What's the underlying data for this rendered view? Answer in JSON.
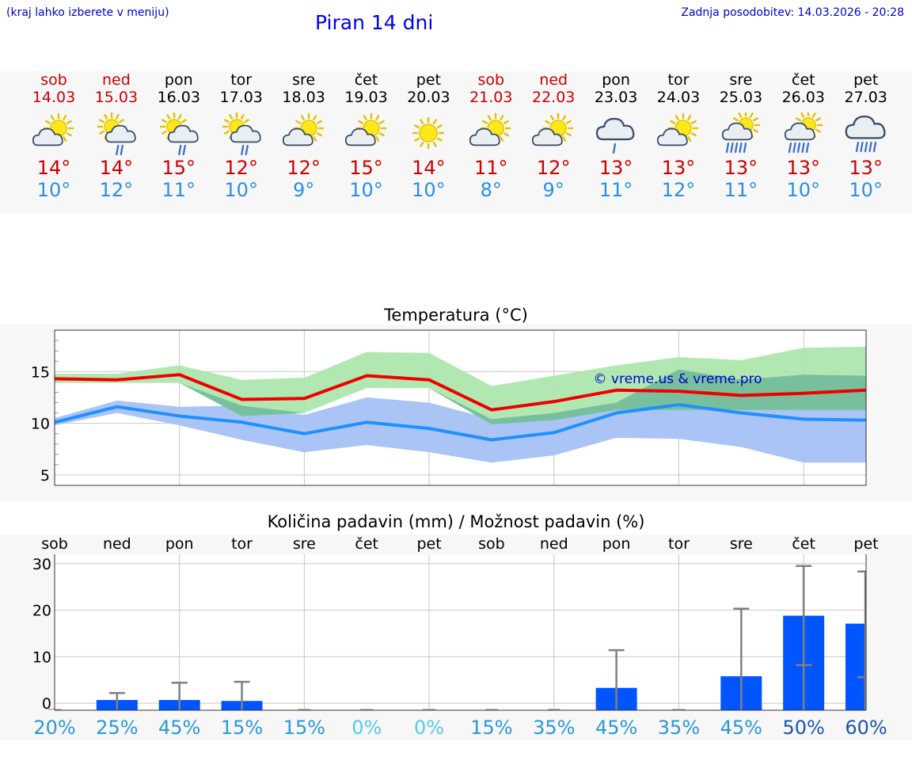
{
  "header": {
    "hint": "(kraj lahko izberete v meniju)",
    "title": "Piran 14 dni",
    "updated": "Zadnja posodobitev: 14.03.2026 - 20:28"
  },
  "days": [
    {
      "name": "sob",
      "date": "14.03",
      "weekend": true,
      "icon": "partly-sunny-icon",
      "max": "14°",
      "min": "10°"
    },
    {
      "name": "ned",
      "date": "15.03",
      "weekend": true,
      "icon": "sun-cloud-rain-icon",
      "max": "14°",
      "min": "12°"
    },
    {
      "name": "pon",
      "date": "16.03",
      "weekend": false,
      "icon": "sun-cloud-rain-icon",
      "max": "15°",
      "min": "11°"
    },
    {
      "name": "tor",
      "date": "17.03",
      "weekend": false,
      "icon": "sun-cloud-rain-icon",
      "max": "12°",
      "min": "10°"
    },
    {
      "name": "sre",
      "date": "18.03",
      "weekend": false,
      "icon": "partly-sunny-icon",
      "max": "12°",
      "min": "9°"
    },
    {
      "name": "čet",
      "date": "19.03",
      "weekend": false,
      "icon": "partly-sunny-icon",
      "max": "15°",
      "min": "10°"
    },
    {
      "name": "pet",
      "date": "20.03",
      "weekend": false,
      "icon": "sun-icon",
      "max": "14°",
      "min": "10°"
    },
    {
      "name": "sob",
      "date": "21.03",
      "weekend": true,
      "icon": "partly-sunny-icon",
      "max": "11°",
      "min": "8°"
    },
    {
      "name": "ned",
      "date": "22.03",
      "weekend": true,
      "icon": "partly-sunny-icon",
      "max": "12°",
      "min": "9°"
    },
    {
      "name": "pon",
      "date": "23.03",
      "weekend": false,
      "icon": "cloud-rain-icon",
      "max": "13°",
      "min": "11°"
    },
    {
      "name": "tor",
      "date": "24.03",
      "weekend": false,
      "icon": "partly-sunny-icon",
      "max": "13°",
      "min": "12°"
    },
    {
      "name": "sre",
      "date": "25.03",
      "weekend": false,
      "icon": "sun-cloud-heavy-rain-icon",
      "max": "13°",
      "min": "11°"
    },
    {
      "name": "čet",
      "date": "26.03",
      "weekend": false,
      "icon": "sun-cloud-heavy-rain-icon",
      "max": "13°",
      "min": "10°"
    },
    {
      "name": "pet",
      "date": "27.03",
      "weekend": false,
      "icon": "cloud-heavy-rain-icon",
      "max": "13°",
      "min": "10°"
    }
  ],
  "colors": {
    "max_line": "#ee0000",
    "min_line": "#1e90ff",
    "max_band": "#a8e6a8",
    "min_band": "#a9c4f5",
    "overlap_band": "#6fb99a",
    "bar": "#0055ff",
    "whisker": "#808080",
    "grid": "#c8c8c8"
  },
  "chart_data": [
    {
      "type": "line",
      "title": "Temperatura (°C)",
      "watermark": "© vreme.us & vreme.pro",
      "x": [
        0,
        1,
        2,
        3,
        4,
        5,
        6,
        7,
        8,
        9,
        10,
        11,
        12,
        13
      ],
      "ylim": [
        4,
        19
      ],
      "yticks": [
        5,
        10,
        15
      ],
      "series": [
        {
          "name": "max",
          "values": [
            14.3,
            14.2,
            14.7,
            12.3,
            12.4,
            14.6,
            14.2,
            11.3,
            12.1,
            13.2,
            13.1,
            12.7,
            12.9,
            13.2
          ],
          "band_low": [
            13.9,
            13.9,
            13.9,
            10.7,
            11.0,
            13.4,
            13.4,
            9.9,
            10.3,
            11.3,
            11.3,
            11.3,
            11.3,
            11.3
          ],
          "band_high": [
            14.8,
            14.8,
            15.6,
            14.2,
            14.4,
            16.9,
            16.8,
            13.6,
            14.6,
            15.6,
            16.4,
            16.1,
            17.3,
            17.4
          ]
        },
        {
          "name": "min",
          "values": [
            10.1,
            11.6,
            10.7,
            10.1,
            9.0,
            10.1,
            9.5,
            8.4,
            9.1,
            11.0,
            11.8,
            11.0,
            10.4,
            10.3
          ],
          "band_low": [
            9.8,
            11.0,
            9.8,
            8.4,
            7.2,
            7.9,
            7.2,
            6.2,
            6.9,
            8.6,
            8.5,
            7.7,
            6.2,
            6.2
          ],
          "band_high": [
            10.5,
            12.2,
            11.6,
            11.7,
            10.8,
            12.5,
            12.0,
            10.4,
            11.0,
            12.0,
            15.2,
            14.2,
            14.7,
            14.6
          ]
        }
      ]
    },
    {
      "type": "bar",
      "title": "Količina padavin (mm) / Možnost padavin (%)",
      "categories": [
        "sob",
        "ned",
        "pon",
        "tor",
        "sre",
        "čet",
        "pet",
        "sob",
        "ned",
        "pon",
        "tor",
        "sre",
        "čet",
        "pet"
      ],
      "values": [
        0,
        0.7,
        0.7,
        0.5,
        0,
        0,
        0,
        0,
        0,
        3.3,
        0,
        5.8,
        18.8,
        17.1
      ],
      "error_high": [
        0,
        2.2,
        4.4,
        4.6,
        0,
        0,
        0,
        0,
        0,
        11.4,
        0,
        20.3,
        29.5,
        28.3
      ],
      "error_low": [
        0,
        0,
        0,
        0,
        0,
        0,
        0,
        0,
        0,
        0,
        0,
        0,
        8.2,
        5.6
      ],
      "probability": [
        "20%",
        "25%",
        "45%",
        "15%",
        "15%",
        "0%",
        "0%",
        "15%",
        "35%",
        "45%",
        "35%",
        "45%",
        "50%",
        "60%"
      ],
      "probability_values": [
        20,
        25,
        45,
        15,
        15,
        0,
        0,
        15,
        35,
        45,
        35,
        45,
        50,
        60
      ],
      "ylim": [
        -1.5,
        32
      ],
      "yticks": [
        0,
        10,
        20,
        30
      ]
    }
  ]
}
